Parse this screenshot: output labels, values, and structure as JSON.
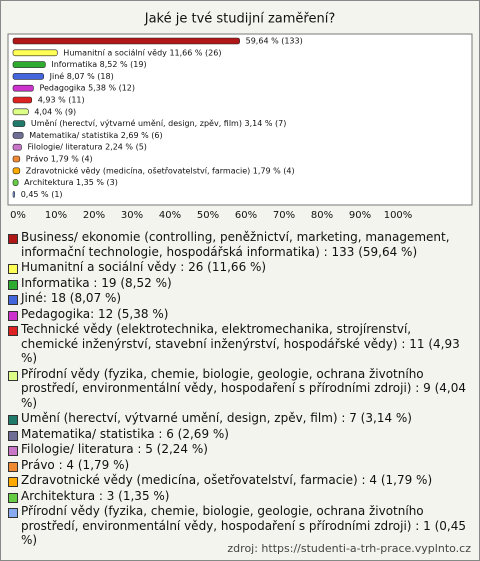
{
  "chart_data": {
    "type": "bar",
    "orientation": "horizontal",
    "title": "Jaké je tvé studijní zaměření?",
    "categories": [
      "Business/ ekonomie (controlling, peněžnictví, marketing, management, informační technologie, hospodářská informatika) : 133 (59,64 %)",
      "Humanitní a sociální vědy : 26 (11,66 %)",
      "Informatika : 19 (8,52 %)",
      "Jiné: 18 (8,07 %)",
      "Pedagogika: 12 (5,38 %)",
      "Technické vědy (elektrotechnika, elektromechanika, strojírenství, chemické inženýrství, stavební inženýrství, hospodářské vědy) : 11 (4,93 %)",
      " Přírodní vědy (fyzika, chemie, biologie, geologie, ochrana životního prostředí, environmentální vědy, hospodaření s přírodními zdroji) : 9 (4,04 %)",
      "Umění (herectví, výtvarné umění, design, zpěv, film) : 7 (3,14 %)",
      " Matematika/ statistika : 6 (2,69 %)",
      "Filologie/ literatura : 5 (2,24 %)",
      "Právo : 4 (1,79 %)",
      "Zdravotnické vědy (medicína, ošetřovatelství, farmacie) : 4 (1,79 %)",
      "Architektura : 3 (1,35 %)",
      "Přírodní vědy (fyzika, chemie, biologie, geologie, ochrana životního prostředí, environmentální vědy, hospodaření s přírodními zdroji) : 1 (0,45 %)"
    ],
    "values": [
      59.64,
      11.66,
      8.52,
      8.07,
      5.38,
      4.93,
      4.04,
      3.14,
      2.69,
      2.24,
      1.79,
      1.79,
      1.35,
      0.45
    ],
    "value_labels": [
      "59,64 % (133)",
      "Humanitní a sociální vědy  11,66 % (26)",
      "Informatika  8,52 % (19)",
      "Jiné 8,07 % (18)",
      "Pedagogika 5,38 % (12)",
      "4,93 % (11)",
      "4,04 % (9)",
      "Umění (herectví, výtvarné umění, design, zpěv, film)  3,14 % (7)",
      "Matematika/ statistika  2,69 % (6)",
      "Filologie/ literatura  2,24 % (5)",
      "Právo  1,79 % (4)",
      "Zdravotnické vědy (medicína, ošetřovatelství, farmacie)  1,79 % (4)",
      "Architektura  1,35 % (3)",
      "0,45 % (1)"
    ],
    "colors": [
      "#b01818",
      "#ffff55",
      "#2eaa2e",
      "#4466dd",
      "#cc33cc",
      "#dd2222",
      "#ddff88",
      "#1f7a6a",
      "#6f6f95",
      "#c877c8",
      "#ee8833",
      "#ffaa00",
      "#66cc44",
      "#88aaee"
    ],
    "xlim": [
      0,
      120
    ],
    "xticks": [
      {
        "value": 0,
        "label": "0%"
      },
      {
        "value": 10,
        "label": "10%"
      },
      {
        "value": 20,
        "label": "20%"
      },
      {
        "value": 30,
        "label": "30%"
      },
      {
        "value": 40,
        "label": "40%"
      },
      {
        "value": 50,
        "label": "50%"
      },
      {
        "value": 60,
        "label": "60%"
      },
      {
        "value": 70,
        "label": "70%"
      },
      {
        "value": 80,
        "label": "80%"
      },
      {
        "value": 90,
        "label": "90%"
      },
      {
        "value": 100,
        "label": "100%"
      }
    ],
    "source": "zdroj: https://studenti-a-trh-prace.vyplnto.cz"
  }
}
